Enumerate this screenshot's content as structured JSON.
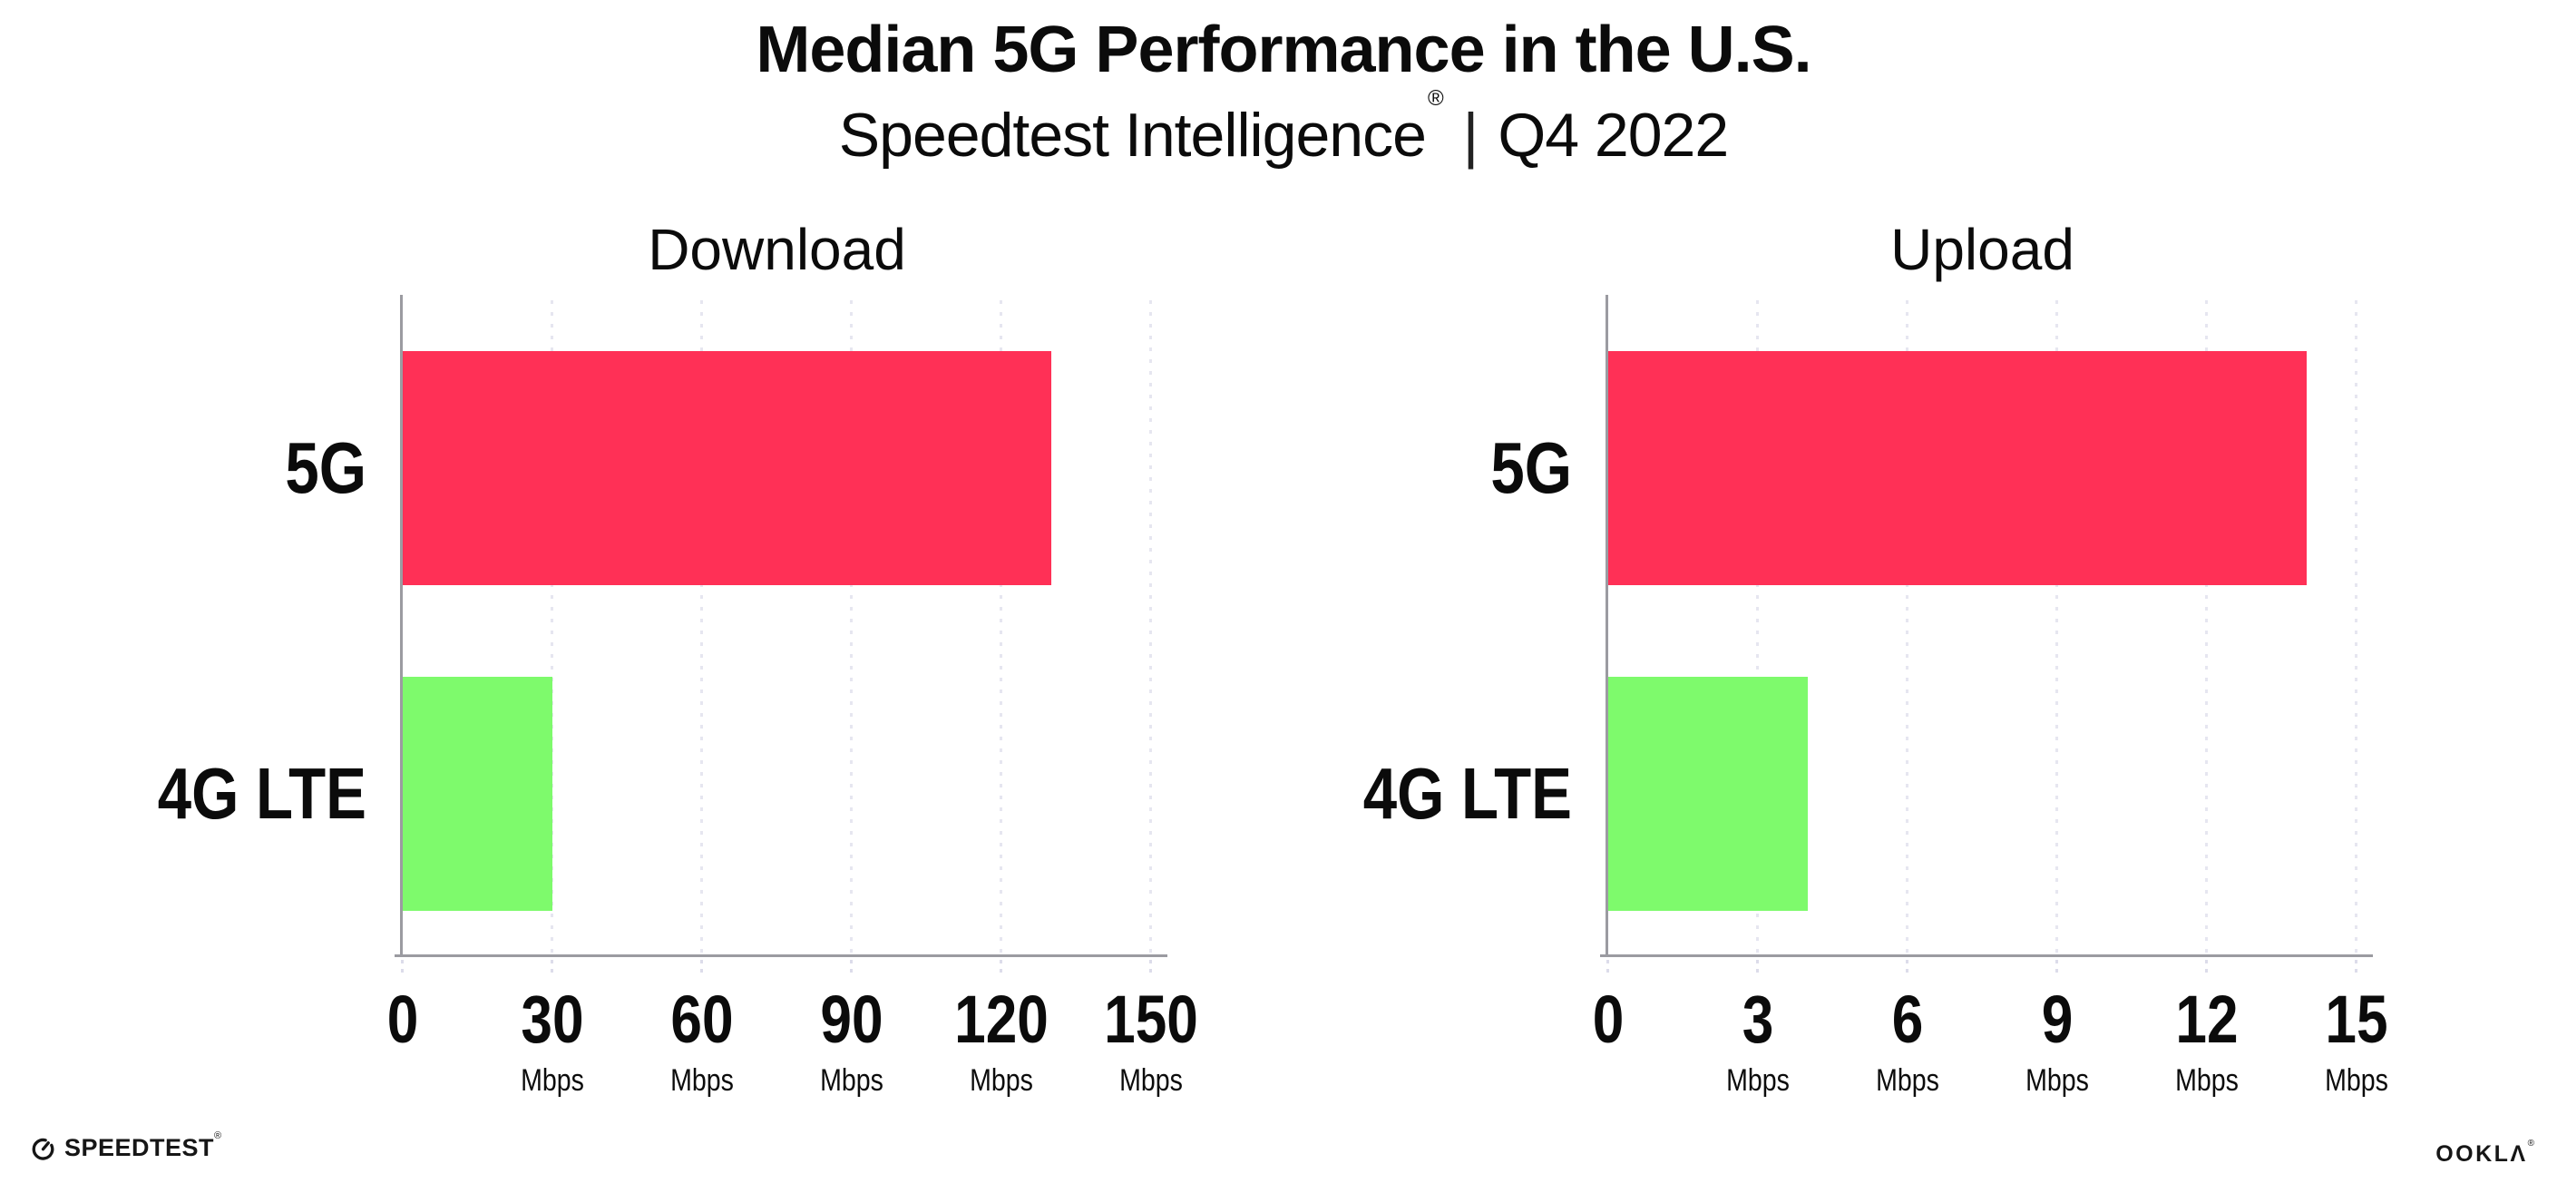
{
  "header": {
    "title": "Median 5G Performance in the U.S.",
    "subtitle_brand": "Speedtest Intelligence",
    "subtitle_reg": "®",
    "subtitle_divider": "|",
    "subtitle_period": "Q4 2022"
  },
  "colors": {
    "bar_5g": "#FF3056",
    "bar_4g_lte": "#7EFA6C",
    "axis_line": "#9B9BA1",
    "gridline": "#E6E6F0",
    "text": "#0B0B0B"
  },
  "chart_data": [
    {
      "type": "bar",
      "orientation": "horizontal",
      "title": "Download",
      "categories": [
        "5G",
        "4G LTE"
      ],
      "values": [
        130,
        30
      ],
      "unit": "Mbps",
      "xlim": [
        0,
        150
      ],
      "xticks": [
        0,
        30,
        60,
        90,
        120,
        150
      ],
      "grid": "dotted-vertical",
      "legend": "none"
    },
    {
      "type": "bar",
      "orientation": "horizontal",
      "title": "Upload",
      "categories": [
        "5G",
        "4G LTE"
      ],
      "values": [
        14,
        4
      ],
      "unit": "Mbps",
      "xlim": [
        0,
        15
      ],
      "xticks": [
        0,
        3,
        6,
        9,
        12,
        15
      ],
      "grid": "dotted-vertical",
      "legend": "none"
    }
  ],
  "footer": {
    "speedtest_label": "SPEEDTEST",
    "speedtest_mark": "®",
    "ookla_label": "OOKLΛ",
    "ookla_mark": "®"
  }
}
